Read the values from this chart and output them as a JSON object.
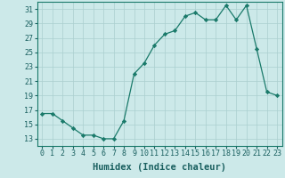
{
  "x": [
    0,
    1,
    2,
    3,
    4,
    5,
    6,
    7,
    8,
    9,
    10,
    11,
    12,
    13,
    14,
    15,
    16,
    17,
    18,
    19,
    20,
    21,
    22,
    23
  ],
  "y": [
    16.5,
    16.5,
    15.5,
    14.5,
    13.5,
    13.5,
    13.0,
    13.0,
    15.5,
    22.0,
    23.5,
    26.0,
    27.5,
    28.0,
    30.0,
    30.5,
    29.5,
    29.5,
    31.5,
    29.5,
    31.5,
    25.5,
    19.5,
    19.0
  ],
  "xlabel": "Humidex (Indice chaleur)",
  "ylim": [
    12,
    32
  ],
  "xlim": [
    -0.5,
    23.5
  ],
  "yticks": [
    13,
    15,
    17,
    19,
    21,
    23,
    25,
    27,
    29,
    31
  ],
  "xticks": [
    0,
    1,
    2,
    3,
    4,
    5,
    6,
    7,
    8,
    9,
    10,
    11,
    12,
    13,
    14,
    15,
    16,
    17,
    18,
    19,
    20,
    21,
    22,
    23
  ],
  "line_color": "#1a7a6a",
  "marker": "D",
  "marker_size": 2.2,
  "bg_color": "#cce9e9",
  "grid_color": "#aacfcf",
  "tick_label_color": "#1a6060",
  "xlabel_color": "#1a6060",
  "xlabel_fontsize": 7.5,
  "tick_fontsize": 6.0
}
